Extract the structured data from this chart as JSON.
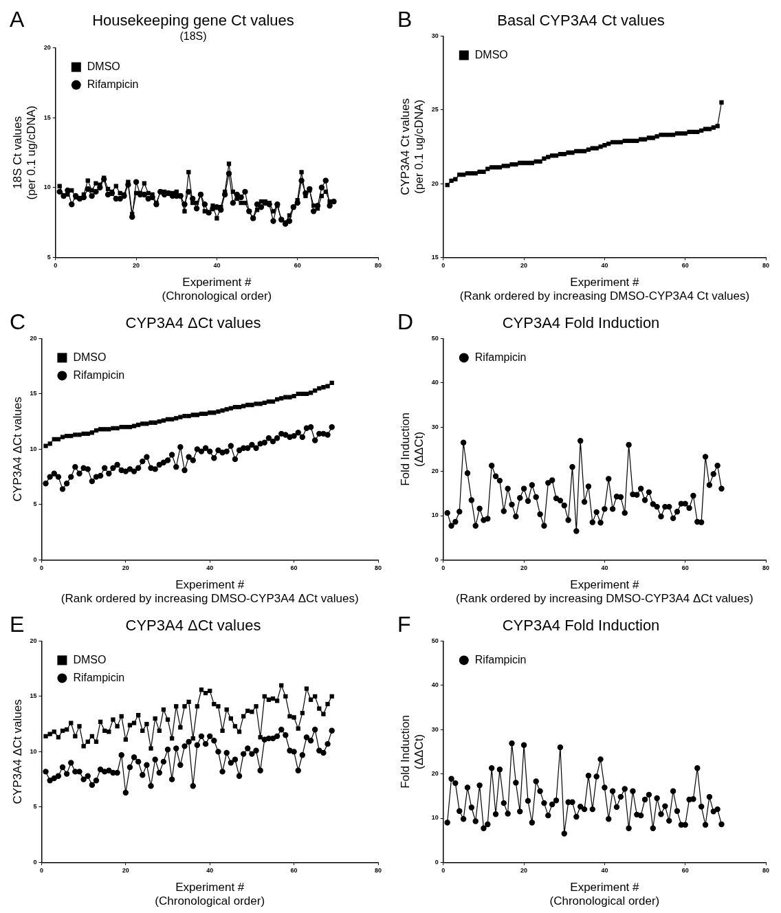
{
  "chart_data": [
    {
      "type": "line",
      "title": "Housekeeping gene Ct values",
      "subtitle": "(18S)",
      "xlabel": "Experiment #\n(Chronological order)",
      "ylabel": "18S Ct values\n(per 0.1 ug/cDNA)",
      "annotations": [
        "A"
      ],
      "xlim": [
        0,
        80
      ],
      "xticks": [
        0,
        20,
        40,
        60,
        80
      ],
      "ylim": [
        5,
        20
      ],
      "yticks": [
        5,
        10,
        15,
        20
      ],
      "legend": "top left",
      "grid": false,
      "x": [
        1,
        2,
        3,
        4,
        5,
        6,
        7,
        8,
        9,
        10,
        11,
        12,
        13,
        14,
        15,
        16,
        17,
        18,
        19,
        20,
        21,
        22,
        23,
        24,
        25,
        26,
        27,
        28,
        29,
        30,
        31,
        32,
        33,
        34,
        35,
        36,
        37,
        38,
        39,
        40,
        41,
        42,
        43,
        44,
        45,
        46,
        47,
        48,
        49,
        50,
        51,
        52,
        53,
        54,
        55,
        56,
        57,
        58,
        59,
        60,
        61,
        62,
        63,
        64,
        65,
        66,
        67,
        68,
        69
      ],
      "series": [
        {
          "name": "DMSO",
          "color": "#000000",
          "marker": "square",
          "values": [
            10.1,
            9.4,
            9.5,
            9.8,
            9.3,
            9.2,
            9.5,
            10.5,
            9.8,
            10.3,
            10.2,
            10.7,
            9.9,
            9.7,
            10.1,
            9.6,
            9.5,
            10.4,
            8.1,
            9.6,
            9.6,
            10.3,
            9.6,
            9.5,
            8.9,
            9.7,
            9.7,
            9.6,
            9.6,
            9.7,
            9.4,
            8.3,
            11.1,
            8.9,
            8.9,
            9.5,
            8.3,
            8.2,
            8.7,
            7.8,
            8.6,
            9.7,
            11.7,
            9.7,
            9.2,
            8.9,
            8.9,
            8.3,
            7.8,
            8.4,
            9.0,
            9.0,
            8.9,
            8.3,
            8.7,
            7.7,
            7.5,
            8.0,
            8.6,
            9.1,
            11.1,
            9.4,
            9.8,
            8.7,
            8.5,
            9.4,
            9.7,
            9.0,
            9.0
          ]
        },
        {
          "name": "Rifampicin",
          "color": "#000000",
          "marker": "circle",
          "values": [
            9.7,
            9.4,
            9.8,
            8.8,
            9.4,
            9.2,
            9.3,
            9.9,
            9.4,
            9.7,
            10.0,
            10.6,
            9.5,
            9.6,
            9.2,
            9.2,
            9.4,
            10.2,
            7.9,
            10.4,
            9.5,
            9.5,
            9.2,
            9.3,
            8.8,
            9.7,
            9.5,
            9.6,
            9.4,
            9.4,
            9.4,
            8.8,
            9.7,
            9.2,
            8.5,
            9.5,
            8.8,
            8.2,
            8.5,
            8.6,
            8.4,
            9.5,
            11.0,
            8.9,
            9.5,
            9.3,
            9.7,
            8.3,
            7.8,
            8.8,
            8.6,
            8.9,
            8.8,
            7.6,
            8.8,
            7.7,
            7.4,
            7.6,
            8.6,
            8.9,
            10.5,
            9.6,
            9.9,
            8.3,
            8.7,
            10.0,
            10.5,
            8.7,
            9.0
          ]
        }
      ]
    },
    {
      "type": "line",
      "title": "Basal CYP3A4 Ct values",
      "xlabel": "Experiment #\n(Rank ordered by increasing DMSO-CYP3A4 Ct values)",
      "ylabel": "CYP3A4 Ct values\n(per 0.1 ug/cDNA)",
      "annotations": [
        "B"
      ],
      "xlim": [
        0,
        80
      ],
      "xticks": [
        0,
        20,
        40,
        60,
        80
      ],
      "ylim": [
        15,
        30
      ],
      "yticks": [
        15,
        20,
        25,
        30
      ],
      "legend": "top left",
      "grid": false,
      "x": [
        1,
        2,
        3,
        4,
        5,
        6,
        7,
        8,
        9,
        10,
        11,
        12,
        13,
        14,
        15,
        16,
        17,
        18,
        19,
        20,
        21,
        22,
        23,
        24,
        25,
        26,
        27,
        28,
        29,
        30,
        31,
        32,
        33,
        34,
        35,
        36,
        37,
        38,
        39,
        40,
        41,
        42,
        43,
        44,
        45,
        46,
        47,
        48,
        49,
        50,
        51,
        52,
        53,
        54,
        55,
        56,
        57,
        58,
        59,
        60,
        61,
        62,
        63,
        64,
        65,
        66,
        67,
        68,
        69
      ],
      "series": [
        {
          "name": "DMSO",
          "color": "#000000",
          "marker": "square",
          "values": [
            19.9,
            20.2,
            20.3,
            20.6,
            20.6,
            20.7,
            20.7,
            20.7,
            20.8,
            20.8,
            21.0,
            21.1,
            21.1,
            21.1,
            21.2,
            21.2,
            21.3,
            21.3,
            21.4,
            21.4,
            21.4,
            21.4,
            21.5,
            21.5,
            21.7,
            21.8,
            21.9,
            21.9,
            22.0,
            22.0,
            22.1,
            22.1,
            22.2,
            22.2,
            22.2,
            22.3,
            22.4,
            22.4,
            22.5,
            22.6,
            22.7,
            22.8,
            22.8,
            22.8,
            22.9,
            22.9,
            22.9,
            22.9,
            23.0,
            23.0,
            23.1,
            23.1,
            23.2,
            23.3,
            23.3,
            23.3,
            23.3,
            23.4,
            23.4,
            23.4,
            23.5,
            23.5,
            23.5,
            23.6,
            23.7,
            23.7,
            23.8,
            23.9,
            25.5
          ]
        }
      ]
    },
    {
      "type": "line",
      "title": "CYP3A4 ΔCt values",
      "xlabel": "Experiment #\n(Rank ordered by increasing DMSO-CYP3A4 ΔCt values)",
      "ylabel": "CYP3A4 ΔCt values",
      "annotations": [
        "C"
      ],
      "xlim": [
        0,
        80
      ],
      "xticks": [
        0,
        20,
        40,
        60,
        80
      ],
      "ylim": [
        0,
        20
      ],
      "yticks": [
        0,
        5,
        10,
        15,
        20
      ],
      "legend": "top left",
      "grid": false,
      "x": [
        1,
        2,
        3,
        4,
        5,
        6,
        7,
        8,
        9,
        10,
        11,
        12,
        13,
        14,
        15,
        16,
        17,
        18,
        19,
        20,
        21,
        22,
        23,
        24,
        25,
        26,
        27,
        28,
        29,
        30,
        31,
        32,
        33,
        34,
        35,
        36,
        37,
        38,
        39,
        40,
        41,
        42,
        43,
        44,
        45,
        46,
        47,
        48,
        49,
        50,
        51,
        52,
        53,
        54,
        55,
        56,
        57,
        58,
        59,
        60,
        61,
        62,
        63,
        64,
        65,
        66,
        67,
        68,
        69
      ],
      "series": [
        {
          "name": "DMSO",
          "color": "#000000",
          "marker": "square",
          "values": [
            10.3,
            10.5,
            10.9,
            10.9,
            11.1,
            11.2,
            11.2,
            11.3,
            11.3,
            11.4,
            11.4,
            11.5,
            11.7,
            11.8,
            11.8,
            11.8,
            11.9,
            11.9,
            12.0,
            12.0,
            12.0,
            12.1,
            12.2,
            12.3,
            12.3,
            12.4,
            12.4,
            12.5,
            12.6,
            12.7,
            12.7,
            12.8,
            12.9,
            13.0,
            13.0,
            13.1,
            13.1,
            13.2,
            13.2,
            13.3,
            13.3,
            13.4,
            13.5,
            13.6,
            13.7,
            13.8,
            13.8,
            13.9,
            14.0,
            14.0,
            14.1,
            14.1,
            14.2,
            14.3,
            14.3,
            14.5,
            14.6,
            14.7,
            14.7,
            14.8,
            15.0,
            15.0,
            15.0,
            15.1,
            15.3,
            15.5,
            15.6,
            15.7,
            16.0
          ]
        },
        {
          "name": "Rifampicin",
          "color": "#000000",
          "marker": "circle",
          "values": [
            6.9,
            7.5,
            7.8,
            7.5,
            6.4,
            6.9,
            7.5,
            8.4,
            7.8,
            8.3,
            8.2,
            7.1,
            7.5,
            7.6,
            8.3,
            7.8,
            8.3,
            8.6,
            8.1,
            8.0,
            8.2,
            8.0,
            8.3,
            8.9,
            9.3,
            8.3,
            8.2,
            8.6,
            8.8,
            9.0,
            9.5,
            8.4,
            10.2,
            8.1,
            9.3,
            9.0,
            10.0,
            9.8,
            10.1,
            9.8,
            9.2,
            9.9,
            9.7,
            9.8,
            10.3,
            9.1,
            9.9,
            10.1,
            10.1,
            10.4,
            10.1,
            10.5,
            10.6,
            11.0,
            10.7,
            11.0,
            11.4,
            11.3,
            11.1,
            11.2,
            11.5,
            11.1,
            11.9,
            12.0,
            10.8,
            11.4,
            11.4,
            11.3,
            12.0
          ]
        }
      ]
    },
    {
      "type": "line",
      "title": "CYP3A4 Fold Induction",
      "xlabel": "Experiment #\n(Rank ordered by increasing DMSO-CYP3A4 ΔCt values)",
      "ylabel": "Fold Induction\n(ΔΔCt)",
      "annotations": [
        "D"
      ],
      "xlim": [
        0,
        80
      ],
      "xticks": [
        0,
        20,
        40,
        60,
        80
      ],
      "ylim": [
        0,
        50
      ],
      "yticks": [
        0,
        10,
        20,
        30,
        40,
        50
      ],
      "legend": "top left",
      "grid": false,
      "x": [
        1,
        2,
        3,
        4,
        5,
        6,
        7,
        8,
        9,
        10,
        11,
        12,
        13,
        14,
        15,
        16,
        17,
        18,
        19,
        20,
        21,
        22,
        23,
        24,
        25,
        26,
        27,
        28,
        29,
        30,
        31,
        32,
        33,
        34,
        35,
        36,
        37,
        38,
        39,
        40,
        41,
        42,
        43,
        44,
        45,
        46,
        47,
        48,
        49,
        50,
        51,
        52,
        53,
        54,
        55,
        56,
        57,
        58,
        59,
        60,
        61,
        62,
        63,
        64,
        65,
        66,
        67,
        68,
        69
      ],
      "series": [
        {
          "name": "Rifampicin",
          "color": "#000000",
          "marker": "circle",
          "values": [
            10.6,
            7.7,
            8.6,
            10.9,
            26.5,
            19.6,
            13.5,
            7.7,
            11.6,
            9.0,
            9.3,
            21.3,
            18.9,
            17.9,
            11.0,
            16.1,
            12.5,
            9.8,
            14.0,
            16.1,
            13.3,
            16.9,
            14.2,
            10.3,
            7.7,
            17.4,
            18.0,
            13.9,
            13.4,
            12.3,
            9.0,
            21.0,
            6.5,
            26.9,
            13.1,
            16.6,
            8.5,
            10.8,
            8.4,
            11.5,
            18.3,
            11.5,
            14.3,
            14.2,
            10.6,
            26.0,
            14.8,
            14.7,
            16.1,
            13.5,
            15.3,
            12.6,
            12.0,
            9.8,
            12.0,
            12.0,
            9.4,
            10.9,
            12.7,
            12.7,
            11.7,
            14.5,
            8.6,
            8.5,
            23.3,
            16.9,
            19.4,
            21.3,
            16.1
          ]
        }
      ]
    },
    {
      "type": "line",
      "title": "CYP3A4 ΔCt values",
      "xlabel": "Experiment #\n(Chronological order)",
      "ylabel": "CYP3A4 ΔCt values",
      "annotations": [
        "E"
      ],
      "xlim": [
        0,
        80
      ],
      "xticks": [
        0,
        20,
        40,
        60,
        80
      ],
      "ylim": [
        0,
        20
      ],
      "yticks": [
        0,
        5,
        10,
        15,
        20
      ],
      "legend": "top left",
      "grid": false,
      "x": [
        1,
        2,
        3,
        4,
        5,
        6,
        7,
        8,
        9,
        10,
        11,
        12,
        13,
        14,
        15,
        16,
        17,
        18,
        19,
        20,
        21,
        22,
        23,
        24,
        25,
        26,
        27,
        28,
        29,
        30,
        31,
        32,
        33,
        34,
        35,
        36,
        37,
        38,
        39,
        40,
        41,
        42,
        43,
        44,
        45,
        46,
        47,
        48,
        49,
        50,
        51,
        52,
        53,
        54,
        55,
        56,
        57,
        58,
        59,
        60,
        61,
        62,
        63,
        64,
        65,
        66,
        67,
        68,
        69
      ],
      "series": [
        {
          "name": "DMSO",
          "color": "#000000",
          "marker": "square",
          "values": [
            11.4,
            11.6,
            11.8,
            11.3,
            11.9,
            12.0,
            12.6,
            11.4,
            12.3,
            10.5,
            10.9,
            11.4,
            10.9,
            12.7,
            11.9,
            11.8,
            12.9,
            12.3,
            13.2,
            11.1,
            12.4,
            12.6,
            13.3,
            11.9,
            12.5,
            10.3,
            13.0,
            11.9,
            13.8,
            12.9,
            11.2,
            14.1,
            12.2,
            14.1,
            14.5,
            11.2,
            14.1,
            15.6,
            15.3,
            15.5,
            14.3,
            14.1,
            11.9,
            13.8,
            13.0,
            12.3,
            11.8,
            13.2,
            13.7,
            13.6,
            14.1,
            11.3,
            15.0,
            14.7,
            14.8,
            14.6,
            16.0,
            15.0,
            13.2,
            13.1,
            12.1,
            13.5,
            15.7,
            14.7,
            15.0,
            13.9,
            13.4,
            14.3,
            15.0
          ]
        },
        {
          "name": "Rifampicin",
          "color": "#000000",
          "marker": "circle",
          "values": [
            8.2,
            7.4,
            7.6,
            7.8,
            8.6,
            8.0,
            9.0,
            8.2,
            8.2,
            7.5,
            7.8,
            7.0,
            7.4,
            8.4,
            8.2,
            8.3,
            8.1,
            8.1,
            9.7,
            6.3,
            8.6,
            9.5,
            9.1,
            7.9,
            8.8,
            6.9,
            9.3,
            8.1,
            9.1,
            10.2,
            7.5,
            10.3,
            8.8,
            10.5,
            10.9,
            6.9,
            10.6,
            11.4,
            10.7,
            11.4,
            11.0,
            10.0,
            8.2,
            9.9,
            9.0,
            9.3,
            7.8,
            9.8,
            10.3,
            9.8,
            10.1,
            8.3,
            11.1,
            11.2,
            11.2,
            11.4,
            12.0,
            11.5,
            10.1,
            10.0,
            8.3,
            9.7,
            11.3,
            11.0,
            12.0,
            10.1,
            9.9,
            10.7,
            11.9
          ]
        }
      ]
    },
    {
      "type": "line",
      "title": "CYP3A4 Fold Induction",
      "xlabel": "Experiment #\n(Chronological order)",
      "ylabel": "Fold Induction\n(ΔΔCt)",
      "annotations": [
        "F"
      ],
      "xlim": [
        0,
        80
      ],
      "xticks": [
        0,
        20,
        40,
        60,
        80
      ],
      "ylim": [
        0,
        50
      ],
      "yticks": [
        0,
        10,
        20,
        30,
        40,
        50
      ],
      "legend": "top left",
      "grid": false,
      "x": [
        1,
        2,
        3,
        4,
        5,
        6,
        7,
        8,
        9,
        10,
        11,
        12,
        13,
        14,
        15,
        16,
        17,
        18,
        19,
        20,
        21,
        22,
        23,
        24,
        25,
        26,
        27,
        28,
        29,
        30,
        31,
        32,
        33,
        34,
        35,
        36,
        37,
        38,
        39,
        40,
        41,
        42,
        43,
        44,
        45,
        46,
        47,
        48,
        49,
        50,
        51,
        52,
        53,
        54,
        55,
        56,
        57,
        58,
        59,
        60,
        61,
        62,
        63,
        64,
        65,
        66,
        67,
        68,
        69
      ],
      "series": [
        {
          "name": "Rifampicin",
          "color": "#000000",
          "marker": "circle",
          "values": [
            9.0,
            18.9,
            17.9,
            11.6,
            9.8,
            16.9,
            12.4,
            9.3,
            17.4,
            7.7,
            8.6,
            21.3,
            10.9,
            21.0,
            13.4,
            11.0,
            26.9,
            18.0,
            11.5,
            26.5,
            13.9,
            9.0,
            18.3,
            16.1,
            13.4,
            10.6,
            13.1,
            14.0,
            26.0,
            6.5,
            13.6,
            13.6,
            10.3,
            12.6,
            12.0,
            19.6,
            12.0,
            19.4,
            23.3,
            16.9,
            9.8,
            16.1,
            12.5,
            14.8,
            16.6,
            7.7,
            16.1,
            10.8,
            10.6,
            14.2,
            15.3,
            7.7,
            14.5,
            10.9,
            12.7,
            9.4,
            16.1,
            11.6,
            8.5,
            8.5,
            14.2,
            14.3,
            21.3,
            12.6,
            8.5,
            14.8,
            11.5,
            12.0,
            8.6
          ]
        }
      ]
    }
  ]
}
